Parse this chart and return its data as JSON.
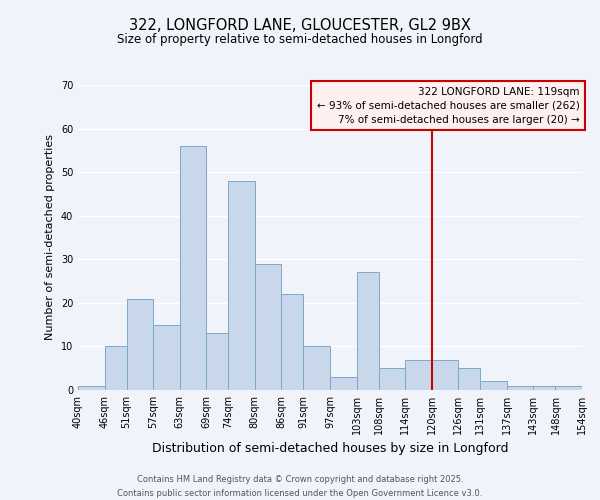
{
  "title": "322, LONGFORD LANE, GLOUCESTER, GL2 9BX",
  "subtitle": "Size of property relative to semi-detached houses in Longford",
  "xlabel": "Distribution of semi-detached houses by size in Longford",
  "ylabel": "Number of semi-detached properties",
  "bar_color": "#c8d8ea",
  "bar_edge_color": "#7aaac8",
  "background_color": "#f0f4fa",
  "grid_color": "#ffffff",
  "bins": [
    40,
    46,
    51,
    57,
    63,
    69,
    74,
    80,
    86,
    91,
    97,
    103,
    108,
    114,
    120,
    126,
    131,
    137,
    143,
    148,
    154
  ],
  "bin_labels": [
    "40sqm",
    "46sqm",
    "51sqm",
    "57sqm",
    "63sqm",
    "69sqm",
    "74sqm",
    "80sqm",
    "86sqm",
    "91sqm",
    "97sqm",
    "103sqm",
    "108sqm",
    "114sqm",
    "120sqm",
    "126sqm",
    "131sqm",
    "137sqm",
    "143sqm",
    "148sqm",
    "154sqm"
  ],
  "counts": [
    1,
    10,
    21,
    15,
    56,
    13,
    48,
    29,
    22,
    10,
    3,
    27,
    5,
    7,
    7,
    5,
    2,
    1,
    1,
    1
  ],
  "ylim": [
    0,
    70
  ],
  "yticks": [
    0,
    10,
    20,
    30,
    40,
    50,
    60,
    70
  ],
  "property_line_x": 120,
  "property_line_color": "#cc0000",
  "legend_title": "322 LONGFORD LANE: 119sqm",
  "legend_line1": "← 93% of semi-detached houses are smaller (262)",
  "legend_line2": "7% of semi-detached houses are larger (20) →",
  "legend_box_facecolor": "#fff0f0",
  "legend_box_edge": "#cc0000",
  "footer_line1": "Contains HM Land Registry data © Crown copyright and database right 2025.",
  "footer_line2": "Contains public sector information licensed under the Open Government Licence v3.0.",
  "title_fontsize": 10.5,
  "subtitle_fontsize": 8.5,
  "ylabel_fontsize": 8,
  "xlabel_fontsize": 9,
  "tick_fontsize": 7,
  "legend_fontsize": 7.5,
  "footer_fontsize": 6
}
